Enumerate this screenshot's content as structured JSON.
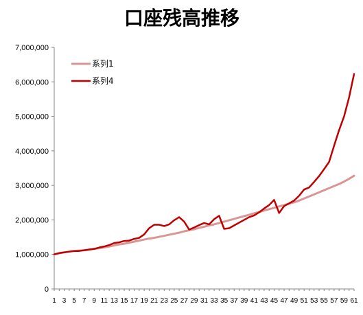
{
  "chart_data": {
    "type": "line",
    "title": "口座残高推移",
    "xlabel": "",
    "ylabel": "",
    "ylim": [
      0,
      7000000
    ],
    "yticks": [
      0,
      1000000,
      2000000,
      3000000,
      4000000,
      5000000,
      6000000,
      7000000
    ],
    "ytick_labels": [
      "0",
      "1,000,000",
      "2,000,000",
      "3,000,000",
      "4,000,000",
      "5,000,000",
      "6,000,000",
      "7,000,000"
    ],
    "x": [
      1,
      2,
      3,
      4,
      5,
      6,
      7,
      8,
      9,
      10,
      11,
      12,
      13,
      14,
      15,
      16,
      17,
      18,
      19,
      20,
      21,
      22,
      23,
      24,
      25,
      26,
      27,
      28,
      29,
      30,
      31,
      32,
      33,
      34,
      35,
      36,
      37,
      38,
      39,
      40,
      41,
      42,
      43,
      44,
      45,
      46,
      47,
      48,
      49,
      50,
      51,
      52,
      53,
      54,
      55,
      56,
      57,
      58,
      59,
      60,
      61
    ],
    "xtick_labels": [
      "1",
      "3",
      "5",
      "7",
      "9",
      "11",
      "13",
      "15",
      "17",
      "19",
      "21",
      "23",
      "25",
      "27",
      "29",
      "31",
      "33",
      "35",
      "37",
      "39",
      "41",
      "43",
      "45",
      "47",
      "49",
      "51",
      "53",
      "55",
      "57",
      "59",
      "61"
    ],
    "grid": false,
    "legend_position": "top-left",
    "series": [
      {
        "name": "系列1",
        "color": "#D99694",
        "values": [
          1000000,
          1030000,
          1060000,
          1080000,
          1100000,
          1110000,
          1120000,
          1140000,
          1160000,
          1180000,
          1200000,
          1230000,
          1260000,
          1290000,
          1310000,
          1340000,
          1370000,
          1400000,
          1430000,
          1460000,
          1480000,
          1510000,
          1540000,
          1570000,
          1600000,
          1630000,
          1670000,
          1700000,
          1730000,
          1770000,
          1800000,
          1840000,
          1870000,
          1910000,
          1950000,
          1990000,
          2030000,
          2070000,
          2110000,
          2150000,
          2190000,
          2230000,
          2270000,
          2310000,
          2350000,
          2390000,
          2430000,
          2470000,
          2510000,
          2560000,
          2620000,
          2680000,
          2740000,
          2800000,
          2860000,
          2920000,
          2980000,
          3040000,
          3110000,
          3190000,
          3280000
        ]
      },
      {
        "name": "系列4",
        "color": "#C00000",
        "values": [
          1000000,
          1040000,
          1060000,
          1080000,
          1100000,
          1100000,
          1120000,
          1140000,
          1160000,
          1200000,
          1230000,
          1270000,
          1330000,
          1350000,
          1390000,
          1400000,
          1450000,
          1480000,
          1580000,
          1760000,
          1860000,
          1860000,
          1820000,
          1870000,
          1990000,
          2080000,
          1950000,
          1720000,
          1780000,
          1850000,
          1910000,
          1870000,
          2020000,
          2120000,
          1740000,
          1760000,
          1840000,
          1920000,
          2000000,
          2080000,
          2130000,
          2220000,
          2330000,
          2430000,
          2580000,
          2200000,
          2400000,
          2480000,
          2560000,
          2700000,
          2880000,
          2940000,
          3100000,
          3270000,
          3470000,
          3680000,
          4150000,
          4600000,
          5000000,
          5550000,
          6230000
        ]
      }
    ]
  }
}
